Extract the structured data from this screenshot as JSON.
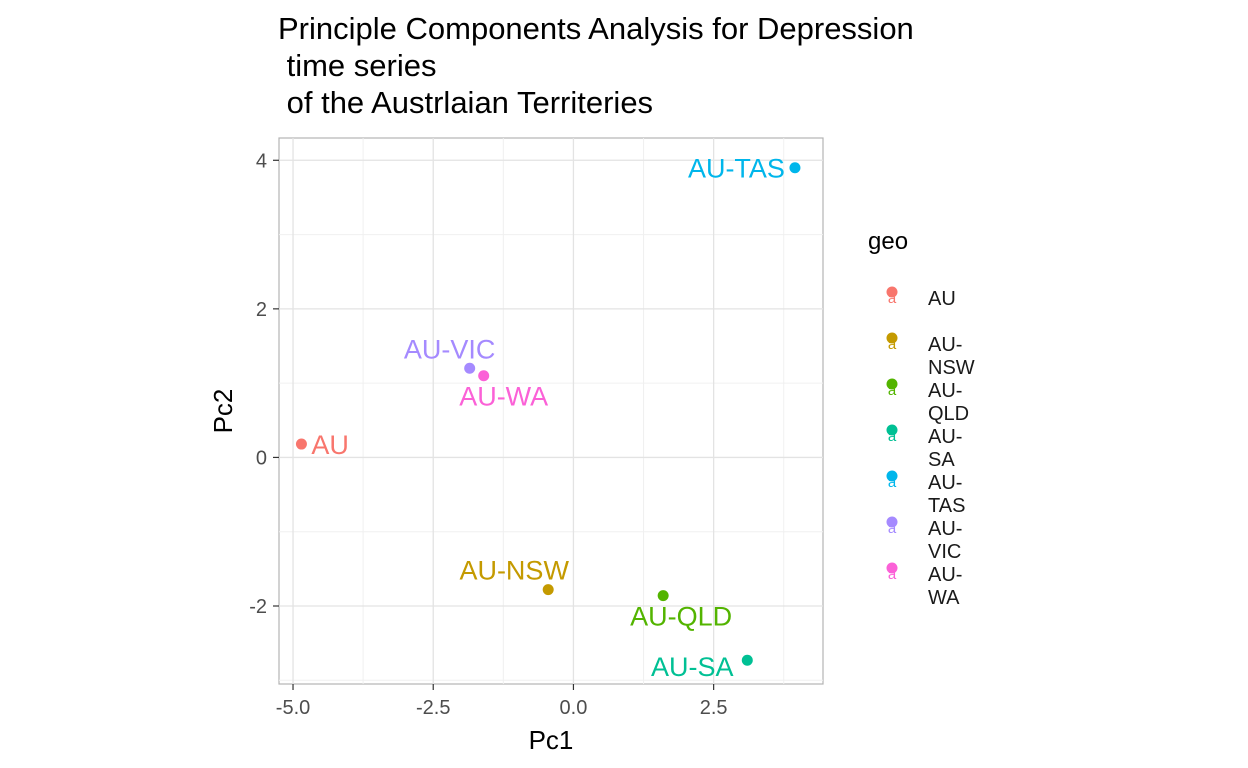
{
  "chart_data": {
    "type": "scatter",
    "title": "Principle Components Analysis for Depression\n time series\n of the Austrlaian Territeries",
    "xlabel": "Pc1",
    "ylabel": "Pc2",
    "xlim": [
      -5.25,
      4.45
    ],
    "ylim": [
      -3.05,
      4.3
    ],
    "x_ticks": [
      -5.0,
      -2.5,
      0.0,
      2.5
    ],
    "x_tick_labels": [
      "-5.0",
      "-2.5",
      "0.0",
      "2.5"
    ],
    "y_ticks": [
      -2,
      0,
      2,
      4
    ],
    "y_tick_labels": [
      "-2",
      "0",
      "2",
      "4"
    ],
    "grid": true,
    "legend_title": "geo",
    "legend_position": "right",
    "points": [
      {
        "label": "AU",
        "x": -4.85,
        "y": 0.18,
        "color": "#F8766D"
      },
      {
        "label": "AU-NSW",
        "x": -0.45,
        "y": -1.78,
        "color": "#C49A00"
      },
      {
        "label": "AU-QLD",
        "x": 1.6,
        "y": -1.86,
        "color": "#53B400"
      },
      {
        "label": "AU-SA",
        "x": 3.1,
        "y": -2.73,
        "color": "#00C094"
      },
      {
        "label": "AU-TAS",
        "x": 3.95,
        "y": 3.9,
        "color": "#00B6EB"
      },
      {
        "label": "AU-VIC",
        "x": -1.85,
        "y": 1.2,
        "color": "#A58AFF"
      },
      {
        "label": "AU-WA",
        "x": -1.6,
        "y": 1.1,
        "color": "#FB61D7"
      }
    ]
  }
}
